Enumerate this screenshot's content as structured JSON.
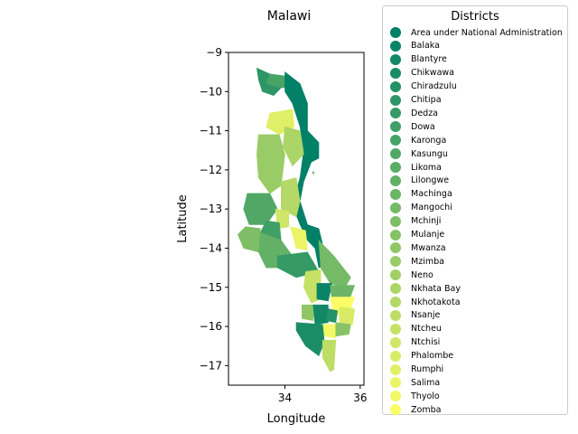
{
  "chart_data": {
    "type": "choropleth",
    "title": "Malawi",
    "xlabel": "Longitude",
    "ylabel": "Latitude",
    "xlim": [
      32.5,
      36.1
    ],
    "ylim": [
      -17.5,
      -9.0
    ],
    "xticks": [
      34,
      36
    ],
    "yticks": [
      -9,
      -10,
      -11,
      -12,
      -13,
      -14,
      -15,
      -16,
      -17
    ],
    "colormap": "summer",
    "legend": {
      "title": "Districts",
      "placement": "outside-right",
      "entries": [
        {
          "name": "Area under National Administration",
          "color": "#008066"
        },
        {
          "name": "Balaka",
          "color": "#098466"
        },
        {
          "name": "Blantyre",
          "color": "#128866"
        },
        {
          "name": "Chikwawa",
          "color": "#1b8d66"
        },
        {
          "name": "Chiradzulu",
          "color": "#249166"
        },
        {
          "name": "Chitipa",
          "color": "#2d9666"
        },
        {
          "name": "Dedza",
          "color": "#369a66"
        },
        {
          "name": "Dowa",
          "color": "#3f9f66"
        },
        {
          "name": "Karonga",
          "color": "#48a366"
        },
        {
          "name": "Kasungu",
          "color": "#51a866"
        },
        {
          "name": "Likoma",
          "color": "#5aac66"
        },
        {
          "name": "Lilongwe",
          "color": "#63b166"
        },
        {
          "name": "Machinga",
          "color": "#6cb566"
        },
        {
          "name": "Mangochi",
          "color": "#75ba66"
        },
        {
          "name": "Mchinji",
          "color": "#7ebe66"
        },
        {
          "name": "Mulanje",
          "color": "#87c366"
        },
        {
          "name": "Mwanza",
          "color": "#90c766"
        },
        {
          "name": "Mzimba",
          "color": "#99cc66"
        },
        {
          "name": "Neno",
          "color": "#a2d066"
        },
        {
          "name": "Nkhata Bay",
          "color": "#abd566"
        },
        {
          "name": "Nkhotakota",
          "color": "#b4d966"
        },
        {
          "name": "Nsanje",
          "color": "#bddd66"
        },
        {
          "name": "Ntcheu",
          "color": "#c6e266"
        },
        {
          "name": "Ntchisi",
          "color": "#cfe666"
        },
        {
          "name": "Phalombe",
          "color": "#d8eb66"
        },
        {
          "name": "Rumphi",
          "color": "#e1ef66"
        },
        {
          "name": "Salima",
          "color": "#eaf466"
        },
        {
          "name": "Thyolo",
          "color": "#f3f866"
        },
        {
          "name": "Zomba",
          "color": "#fcfd66"
        }
      ]
    },
    "districts": [
      {
        "name": "Chitipa",
        "color": "#2d9666",
        "outline": [
          [
            33.25,
            -9.4
          ],
          [
            33.6,
            -9.55
          ],
          [
            33.5,
            -9.8
          ],
          [
            33.9,
            -9.9
          ],
          [
            33.7,
            -10.1
          ],
          [
            33.4,
            -10.0
          ],
          [
            33.3,
            -9.7
          ]
        ]
      },
      {
        "name": "Karonga",
        "color": "#48a366",
        "outline": [
          [
            33.6,
            -9.55
          ],
          [
            34.0,
            -9.6
          ],
          [
            34.0,
            -9.9
          ],
          [
            33.9,
            -9.9
          ],
          [
            33.5,
            -9.8
          ]
        ]
      },
      {
        "name": "Area under National Administration",
        "color": "#008066",
        "outline": [
          [
            34.0,
            -9.5
          ],
          [
            34.4,
            -9.8
          ],
          [
            34.6,
            -10.3
          ],
          [
            34.6,
            -11.0
          ],
          [
            34.9,
            -11.3
          ],
          [
            34.9,
            -11.7
          ],
          [
            34.7,
            -11.8
          ],
          [
            34.5,
            -12.3
          ],
          [
            34.4,
            -12.8
          ],
          [
            34.6,
            -13.4
          ],
          [
            34.9,
            -13.5
          ],
          [
            35.0,
            -13.9
          ],
          [
            35.2,
            -14.4
          ],
          [
            34.9,
            -14.5
          ],
          [
            34.8,
            -14.0
          ],
          [
            34.6,
            -13.8
          ],
          [
            34.4,
            -13.4
          ],
          [
            34.2,
            -12.9
          ],
          [
            34.4,
            -12.2
          ],
          [
            34.5,
            -11.5
          ],
          [
            34.4,
            -10.9
          ],
          [
            34.2,
            -10.3
          ],
          [
            34.0,
            -10.0
          ]
        ]
      },
      {
        "name": "Rumphi",
        "color": "#e1ef66",
        "outline": [
          [
            33.6,
            -10.55
          ],
          [
            34.2,
            -10.45
          ],
          [
            34.25,
            -10.9
          ],
          [
            33.85,
            -11.1
          ],
          [
            33.5,
            -10.9
          ]
        ]
      },
      {
        "name": "Nkhata Bay",
        "color": "#abd566",
        "outline": [
          [
            34.0,
            -10.9
          ],
          [
            34.4,
            -11.0
          ],
          [
            34.5,
            -11.6
          ],
          [
            34.2,
            -11.9
          ],
          [
            33.95,
            -11.4
          ]
        ]
      },
      {
        "name": "Mzimba",
        "color": "#99cc66",
        "outline": [
          [
            33.3,
            -11.1
          ],
          [
            33.85,
            -11.1
          ],
          [
            34.0,
            -11.6
          ],
          [
            33.9,
            -12.4
          ],
          [
            33.6,
            -12.6
          ],
          [
            33.3,
            -12.2
          ],
          [
            33.25,
            -11.6
          ]
        ]
      },
      {
        "name": "Kasungu",
        "color": "#51a866",
        "outline": [
          [
            33.0,
            -12.6
          ],
          [
            33.6,
            -12.6
          ],
          [
            33.8,
            -13.0
          ],
          [
            33.5,
            -13.4
          ],
          [
            33.05,
            -13.4
          ],
          [
            32.9,
            -13.0
          ]
        ]
      },
      {
        "name": "Nkhotakota",
        "color": "#b4d966",
        "outline": [
          [
            33.9,
            -12.3
          ],
          [
            34.3,
            -12.2
          ],
          [
            34.4,
            -12.8
          ],
          [
            34.3,
            -13.2
          ],
          [
            33.9,
            -13.0
          ]
        ]
      },
      {
        "name": "Ntchisi",
        "color": "#cfe666",
        "outline": [
          [
            33.75,
            -13.0
          ],
          [
            34.1,
            -13.05
          ],
          [
            34.1,
            -13.45
          ],
          [
            33.8,
            -13.5
          ]
        ]
      },
      {
        "name": "Dowa",
        "color": "#3f9f66",
        "outline": [
          [
            33.5,
            -13.3
          ],
          [
            33.85,
            -13.35
          ],
          [
            33.9,
            -13.8
          ],
          [
            33.55,
            -13.9
          ],
          [
            33.35,
            -13.6
          ]
        ]
      },
      {
        "name": "Salima",
        "color": "#eaf466",
        "outline": [
          [
            34.15,
            -13.45
          ],
          [
            34.55,
            -13.55
          ],
          [
            34.6,
            -14.05
          ],
          [
            34.3,
            -14.0
          ]
        ]
      },
      {
        "name": "Mchinji",
        "color": "#7ebe66",
        "outline": [
          [
            32.95,
            -13.45
          ],
          [
            33.35,
            -13.5
          ],
          [
            33.3,
            -14.1
          ],
          [
            32.9,
            -14.0
          ],
          [
            32.75,
            -13.65
          ]
        ]
      },
      {
        "name": "Lilongwe",
        "color": "#63b166",
        "outline": [
          [
            33.35,
            -13.6
          ],
          [
            33.9,
            -13.8
          ],
          [
            34.2,
            -14.2
          ],
          [
            33.8,
            -14.5
          ],
          [
            33.5,
            -14.5
          ],
          [
            33.3,
            -14.1
          ]
        ]
      },
      {
        "name": "Dedza",
        "color": "#369a66",
        "outline": [
          [
            33.8,
            -14.2
          ],
          [
            34.6,
            -14.1
          ],
          [
            34.9,
            -14.6
          ],
          [
            34.3,
            -14.75
          ],
          [
            33.8,
            -14.5
          ]
        ]
      },
      {
        "name": "Ntcheu",
        "color": "#c6e266",
        "outline": [
          [
            34.55,
            -14.6
          ],
          [
            34.95,
            -14.55
          ],
          [
            34.95,
            -15.3
          ],
          [
            34.7,
            -15.4
          ],
          [
            34.5,
            -15.0
          ]
        ]
      },
      {
        "name": "Mangochi",
        "color": "#75ba66",
        "outline": [
          [
            34.9,
            -13.8
          ],
          [
            35.3,
            -14.2
          ],
          [
            35.75,
            -14.75
          ],
          [
            35.6,
            -15.0
          ],
          [
            35.2,
            -14.9
          ],
          [
            34.95,
            -14.5
          ]
        ]
      },
      {
        "name": "Balaka",
        "color": "#098466",
        "outline": [
          [
            34.85,
            -14.9
          ],
          [
            35.25,
            -14.9
          ],
          [
            35.15,
            -15.35
          ],
          [
            34.85,
            -15.3
          ]
        ]
      },
      {
        "name": "Machinga",
        "color": "#6cb566",
        "outline": [
          [
            35.2,
            -14.95
          ],
          [
            35.85,
            -14.95
          ],
          [
            35.7,
            -15.35
          ],
          [
            35.25,
            -15.35
          ]
        ]
      },
      {
        "name": "Zomba",
        "color": "#fcfd66",
        "outline": [
          [
            35.2,
            -15.25
          ],
          [
            35.85,
            -15.25
          ],
          [
            35.7,
            -15.7
          ],
          [
            35.3,
            -15.7
          ]
        ]
      },
      {
        "name": "Mwanza",
        "color": "#90c766",
        "outline": [
          [
            34.45,
            -15.45
          ],
          [
            34.8,
            -15.45
          ],
          [
            34.75,
            -15.85
          ],
          [
            34.45,
            -15.8
          ]
        ]
      },
      {
        "name": "Blantyre",
        "color": "#128866",
        "outline": [
          [
            34.75,
            -15.45
          ],
          [
            35.15,
            -15.45
          ],
          [
            35.15,
            -15.9
          ],
          [
            34.8,
            -15.95
          ]
        ]
      },
      {
        "name": "Chiradzulu",
        "color": "#249166",
        "outline": [
          [
            35.15,
            -15.55
          ],
          [
            35.4,
            -15.6
          ],
          [
            35.35,
            -15.9
          ],
          [
            35.1,
            -15.85
          ]
        ]
      },
      {
        "name": "Phalombe",
        "color": "#d8eb66",
        "outline": [
          [
            35.45,
            -15.5
          ],
          [
            35.85,
            -15.55
          ],
          [
            35.8,
            -15.95
          ],
          [
            35.45,
            -15.95
          ]
        ]
      },
      {
        "name": "Thyolo",
        "color": "#f3f866",
        "outline": [
          [
            35.0,
            -15.95
          ],
          [
            35.35,
            -15.95
          ],
          [
            35.35,
            -16.3
          ],
          [
            35.05,
            -16.25
          ]
        ]
      },
      {
        "name": "Mulanje",
        "color": "#87c366",
        "outline": [
          [
            35.35,
            -15.9
          ],
          [
            35.75,
            -15.95
          ],
          [
            35.7,
            -16.2
          ],
          [
            35.35,
            -16.25
          ]
        ]
      },
      {
        "name": "Chikwawa",
        "color": "#1b8d66",
        "outline": [
          [
            34.3,
            -15.9
          ],
          [
            35.0,
            -15.95
          ],
          [
            35.05,
            -16.4
          ],
          [
            34.9,
            -16.75
          ],
          [
            34.55,
            -16.5
          ],
          [
            34.3,
            -16.1
          ]
        ]
      },
      {
        "name": "Nsanje",
        "color": "#bddd66",
        "outline": [
          [
            35.0,
            -16.35
          ],
          [
            35.35,
            -16.35
          ],
          [
            35.3,
            -17.1
          ],
          [
            35.2,
            -17.15
          ],
          [
            35.0,
            -16.8
          ]
        ]
      },
      {
        "name": "Likoma",
        "color": "#5aac66",
        "outline": [
          [
            34.73,
            -12.05
          ],
          [
            34.77,
            -12.05
          ],
          [
            34.76,
            -12.12
          ]
        ]
      }
    ]
  }
}
